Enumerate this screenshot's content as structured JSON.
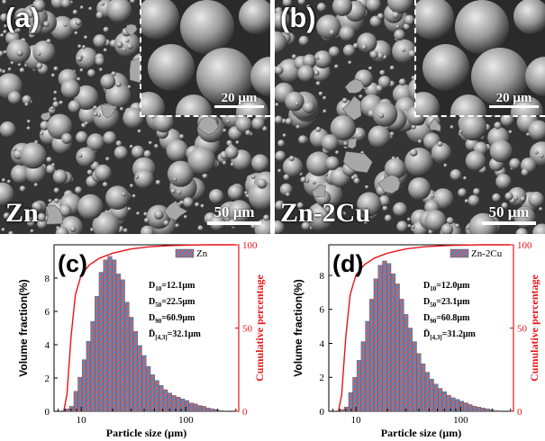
{
  "panels": {
    "a": {
      "letter": "(a)",
      "alloy": "Zn",
      "scale_main": "50 μm",
      "scale_inset": "20 μm"
    },
    "b": {
      "letter": "(b)",
      "alloy": "Zn-2Cu",
      "scale_main": "50 μm",
      "scale_inset": "20 μm"
    }
  },
  "colors": {
    "bar_stripe_a": "#3a8fd0",
    "bar_stripe_b": "#e05a5a",
    "cumulative": "#e8141a",
    "sem_bg": "#3a3a3a"
  },
  "chart_data": [
    {
      "type": "bar",
      "panel_letter": "(c)",
      "xlabel": "Particle size (μm)",
      "ylabel": "Volume fraction(%)",
      "ylabel_right": "Cumulative percentage",
      "x_scale": "log",
      "x_ticks": [
        "10",
        "100"
      ],
      "y_ticks": [
        "0",
        "2",
        "4",
        "6",
        "8"
      ],
      "y2_ticks": [
        "0",
        "50",
        "100"
      ],
      "ylim": [
        0,
        10
      ],
      "y2lim": [
        0,
        100
      ],
      "xlim": [
        5.5,
        320
      ],
      "legend": "Zn",
      "stats": [
        {
          "sym": "D",
          "sub": "10",
          "val": "=12.1μm"
        },
        {
          "sym": "D",
          "sub": "50",
          "val": "=22.5μm"
        },
        {
          "sym": "D",
          "sub": "90",
          "val": "=60.9μm"
        },
        {
          "sym": "D̄",
          "sub": "[4,3]",
          "val": "=32.1μm"
        }
      ],
      "bar_edges_um": [
        7,
        7.7,
        8.5,
        9.3,
        10.2,
        11.2,
        12.3,
        13.5,
        14.8,
        16.3,
        17.9,
        19.7,
        21.6,
        23.8,
        26.1,
        28.7,
        31.5,
        34.6,
        38,
        41.8,
        45.9,
        50.4,
        55.4,
        60.9,
        66.9,
        73.5,
        80.7,
        88.7,
        97.5,
        107,
        118,
        129,
        142,
        156,
        171,
        188,
        207,
        227,
        249
      ],
      "values": [
        0.15,
        0.3,
        1.2,
        2.05,
        3.1,
        4.2,
        5.4,
        6.9,
        8.35,
        9.1,
        9.3,
        9.1,
        8.25,
        7.9,
        6.55,
        5.65,
        4.8,
        3.95,
        3.35,
        2.7,
        2.2,
        1.85,
        1.55,
        1.3,
        1.1,
        0.95,
        0.85,
        0.75,
        0.65,
        0.5,
        0.45,
        0.35,
        0.3,
        0.2,
        0.15,
        0.1,
        0.05,
        0.03
      ],
      "cumulative_x": [
        6.8,
        7.3,
        8.0,
        8.8,
        10,
        12,
        15,
        20,
        30,
        45,
        70,
        100,
        150,
        250,
        300
      ],
      "cumulative_y": [
        0,
        10,
        45,
        70,
        82,
        88,
        92,
        95,
        97.5,
        98.8,
        99.5,
        99.8,
        100,
        100,
        100
      ]
    },
    {
      "type": "bar",
      "panel_letter": "(d)",
      "xlabel": "Particle size (μm)",
      "ylabel": "Volume fraction(%)",
      "ylabel_right": "Cumulative percentage",
      "x_scale": "log",
      "x_ticks": [
        "10",
        "100"
      ],
      "y_ticks": [
        "0",
        "2",
        "4",
        "6",
        "8"
      ],
      "y2_ticks": [
        "0",
        "50",
        "100"
      ],
      "ylim": [
        0,
        9.8
      ],
      "y2lim": [
        0,
        100
      ],
      "xlim": [
        5.5,
        320
      ],
      "legend": "Zn-2Cu",
      "stats": [
        {
          "sym": "D",
          "sub": "10",
          "val": "=12.0μm"
        },
        {
          "sym": "D",
          "sub": "50",
          "val": "=23.1μm"
        },
        {
          "sym": "D",
          "sub": "90",
          "val": "=60.8μm"
        },
        {
          "sym": "D̄",
          "sub": "[4,3]",
          "val": "=31.2μm"
        }
      ],
      "bar_edges_um": [
        7,
        7.7,
        8.5,
        9.3,
        10.2,
        11.2,
        12.3,
        13.5,
        14.8,
        16.3,
        17.9,
        19.7,
        21.6,
        23.8,
        26.1,
        28.7,
        31.5,
        34.6,
        38,
        41.8,
        45.9,
        50.4,
        55.4,
        60.9,
        66.9,
        73.5,
        80.7,
        88.7,
        97.5,
        107,
        118,
        129,
        142,
        156,
        171,
        188,
        207,
        227,
        249
      ],
      "values": [
        0.1,
        0.25,
        1.1,
        2.0,
        3.0,
        4.1,
        5.3,
        6.6,
        7.8,
        8.6,
        8.85,
        8.7,
        8.1,
        7.5,
        6.6,
        5.7,
        4.9,
        4.1,
        3.4,
        2.8,
        2.3,
        1.9,
        1.6,
        1.35,
        1.15,
        0.95,
        0.8,
        0.7,
        0.6,
        0.5,
        0.4,
        0.3,
        0.25,
        0.2,
        0.15,
        0.1,
        0.05,
        0.03
      ],
      "cumulative_x": [
        6.8,
        7.3,
        8.0,
        8.8,
        10,
        12,
        15,
        20,
        30,
        45,
        70,
        100,
        150,
        250,
        300
      ],
      "cumulative_y": [
        0,
        10,
        45,
        70,
        82,
        88,
        92,
        95,
        97.5,
        98.8,
        99.5,
        99.8,
        100,
        100,
        100
      ]
    }
  ]
}
